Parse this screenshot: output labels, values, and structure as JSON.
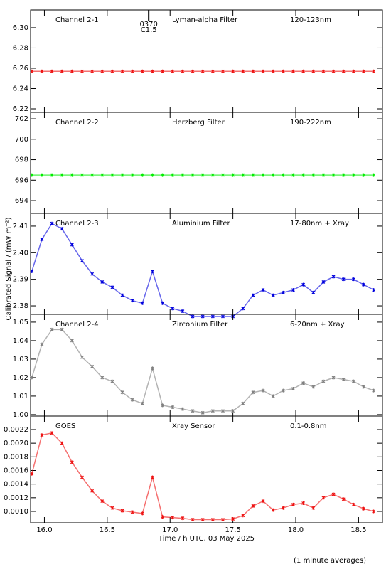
{
  "ylabel": "Calibrated Signal / (mW m⁻²)",
  "footnote": "(1 minute averages)",
  "chart_data": [
    {
      "type": "scatter",
      "labels": [
        "Channel 2-1",
        "Lyman-alpha Filter",
        "120-123nm"
      ],
      "annotation": {
        "x": 16.83,
        "texts": [
          "0370",
          "C1.5"
        ]
      },
      "xlim": [
        15.89,
        18.69
      ],
      "xticks": [
        {
          "value": 16,
          "label": "16.0"
        },
        16.5,
        {
          "value": 17,
          "label": "17.0"
        },
        17.5,
        {
          "value": 18,
          "label": "18.0"
        },
        18.5
      ],
      "ylim": [
        6.2165,
        6.3175
      ],
      "yticks": [
        6.22,
        {
          "value": 6.24,
          "label": "6.24"
        },
        {
          "value": 6.26,
          "label": "6.26"
        },
        {
          "value": 6.28,
          "label": "6.28"
        },
        {
          "value": 6.3,
          "label": "6.30"
        }
      ],
      "x": [
        15.9,
        15.98,
        16.06,
        16.14,
        16.22,
        16.3,
        16.38,
        16.46,
        16.54,
        16.62,
        16.7,
        16.78,
        16.86,
        16.94,
        17.02,
        17.1,
        17.18,
        17.26,
        17.34,
        17.42,
        17.5,
        17.58,
        17.66,
        17.74,
        17.82,
        17.9,
        17.98,
        18.06,
        18.14,
        18.22,
        18.3,
        18.38,
        18.46,
        18.54,
        18.62
      ],
      "series": [
        {
          "name": "Channel 2-1",
          "color": "#ee1111",
          "values": [
            6.257,
            6.257,
            6.257,
            6.257,
            6.257,
            6.257,
            6.257,
            6.257,
            6.257,
            6.257,
            6.257,
            6.257,
            6.257,
            6.257,
            6.257,
            6.257,
            6.257,
            6.257,
            6.257,
            6.257,
            6.257,
            6.257,
            6.257,
            6.257,
            6.257,
            6.257,
            6.257,
            6.257,
            6.257,
            6.257,
            6.257,
            6.257,
            6.257,
            6.257,
            6.257
          ]
        }
      ]
    },
    {
      "type": "scatter",
      "labels": [
        "Channel 2-2",
        "Herzberg Filter",
        "190-222nm"
      ],
      "xlim": [
        15.89,
        18.69
      ],
      "xticks": [
        {
          "value": 16,
          "label": "16.0"
        },
        16.5,
        {
          "value": 17,
          "label": "17.0"
        },
        17.5,
        {
          "value": 18,
          "label": "18.0"
        },
        18.5
      ],
      "ylim": [
        692.75,
        702.63
      ],
      "yticks": [
        694,
        696,
        698,
        700,
        702
      ],
      "x": [
        15.9,
        15.98,
        16.06,
        16.14,
        16.22,
        16.3,
        16.38,
        16.46,
        16.54,
        16.62,
        16.7,
        16.78,
        16.86,
        16.94,
        17.02,
        17.1,
        17.18,
        17.26,
        17.34,
        17.42,
        17.5,
        17.58,
        17.66,
        17.74,
        17.82,
        17.9,
        17.98,
        18.06,
        18.14,
        18.22,
        18.3,
        18.38,
        18.46,
        18.54,
        18.62
      ],
      "series": [
        {
          "name": "Channel 2-2",
          "color": "#00ee00",
          "values": [
            696.5,
            696.5,
            696.5,
            696.5,
            696.5,
            696.5,
            696.5,
            696.5,
            696.5,
            696.5,
            696.5,
            696.5,
            696.5,
            696.5,
            696.5,
            696.5,
            696.5,
            696.5,
            696.5,
            696.5,
            696.5,
            696.5,
            696.5,
            696.5,
            696.5,
            696.5,
            696.5,
            696.5,
            696.5,
            696.5,
            696.5,
            696.5,
            696.5,
            696.5,
            696.5
          ]
        }
      ]
    },
    {
      "type": "scatter",
      "labels": [
        "Channel 2-3",
        "Aluminium Filter",
        "17-80nm + Xray"
      ],
      "xlim": [
        15.89,
        18.69
      ],
      "xticks": [
        {
          "value": 16,
          "label": "16.0"
        },
        16.5,
        {
          "value": 17,
          "label": "17.0"
        },
        17.5,
        {
          "value": 18,
          "label": "18.0"
        },
        18.5
      ],
      "ylim": [
        2.3768,
        2.4148
      ],
      "yticks": [
        2.38,
        2.39,
        {
          "value": 2.4,
          "label": "2.40"
        },
        2.41
      ],
      "x": [
        15.9,
        15.98,
        16.06,
        16.14,
        16.22,
        16.3,
        16.38,
        16.46,
        16.54,
        16.62,
        16.7,
        16.78,
        16.86,
        16.94,
        17.02,
        17.1,
        17.18,
        17.26,
        17.34,
        17.42,
        17.5,
        17.58,
        17.66,
        17.74,
        17.82,
        17.9,
        17.98,
        18.06,
        18.14,
        18.22,
        18.3,
        18.38,
        18.46,
        18.54,
        18.62
      ],
      "series": [
        {
          "name": "Channel 2-3",
          "color": "#0000dd",
          "values": [
            2.393,
            2.405,
            2.411,
            2.409,
            2.403,
            2.397,
            2.392,
            2.389,
            2.387,
            2.384,
            2.382,
            2.381,
            2.393,
            2.381,
            2.379,
            2.378,
            2.376,
            2.376,
            2.376,
            2.376,
            2.376,
            2.379,
            2.384,
            2.386,
            2.384,
            2.385,
            2.386,
            2.388,
            2.385,
            2.389,
            2.391,
            2.39,
            2.39,
            2.388,
            2.386
          ]
        }
      ]
    },
    {
      "type": "scatter",
      "labels": [
        "Channel 2-4",
        "Zirconium Filter",
        "6-20nm + Xray"
      ],
      "xlim": [
        15.89,
        18.69
      ],
      "xticks": [
        {
          "value": 16,
          "label": "16.0"
        },
        16.5,
        {
          "value": 17,
          "label": "17.0"
        },
        17.5,
        {
          "value": 18,
          "label": "18.0"
        },
        18.5
      ],
      "ylim": [
        0.9992,
        1.0542
      ],
      "yticks": [
        {
          "value": 1,
          "label": "1.00"
        },
        1.01,
        1.02,
        1.03,
        1.04,
        1.05
      ],
      "x": [
        15.9,
        15.98,
        16.06,
        16.14,
        16.22,
        16.3,
        16.38,
        16.46,
        16.54,
        16.62,
        16.7,
        16.78,
        16.86,
        16.94,
        17.02,
        17.1,
        17.18,
        17.26,
        17.34,
        17.42,
        17.5,
        17.58,
        17.66,
        17.74,
        17.82,
        17.9,
        17.98,
        18.06,
        18.14,
        18.22,
        18.3,
        18.38,
        18.46,
        18.54,
        18.62
      ],
      "series": [
        {
          "name": "Channel 2-4",
          "color": "#808080",
          "values": [
            1.02,
            1.038,
            1.046,
            1.046,
            1.04,
            1.031,
            1.026,
            1.02,
            1.018,
            1.012,
            1.008,
            1.006,
            1.025,
            1.005,
            1.004,
            1.003,
            1.002,
            1.001,
            1.002,
            1.002,
            1.002,
            1.006,
            1.012,
            1.013,
            1.01,
            1.013,
            1.014,
            1.017,
            1.015,
            1.018,
            1.02,
            1.019,
            1.018,
            1.015,
            1.013
          ]
        }
      ]
    },
    {
      "type": "scatter",
      "labels": [
        "GOES",
        "Xray Sensor",
        "0.1-0.8nm"
      ],
      "xlabel": "Time / h UTC, 03 May 2025",
      "xlim": [
        15.89,
        18.69
      ],
      "xticks": [
        {
          "value": 16,
          "label": "16.0"
        },
        16.5,
        {
          "value": 17,
          "label": "17.0"
        },
        17.5,
        {
          "value": 18,
          "label": "18.0"
        },
        18.5
      ],
      "ylim": [
        0.000833,
        0.002398
      ],
      "yticks": [
        {
          "value": 0.001,
          "label": "0.0010"
        },
        {
          "value": 0.0012,
          "label": "0.0012"
        },
        {
          "value": 0.0014,
          "label": "0.0014"
        },
        {
          "value": 0.0016,
          "label": "0.0016"
        },
        {
          "value": 0.0018,
          "label": "0.0018"
        },
        {
          "value": 0.002,
          "label": "0.0020"
        },
        {
          "value": 0.0022,
          "label": "0.0022"
        }
      ],
      "x": [
        15.9,
        15.98,
        16.06,
        16.14,
        16.22,
        16.3,
        16.38,
        16.46,
        16.54,
        16.62,
        16.7,
        16.78,
        16.86,
        16.94,
        17.02,
        17.1,
        17.18,
        17.26,
        17.34,
        17.42,
        17.5,
        17.58,
        17.66,
        17.74,
        17.82,
        17.9,
        17.98,
        18.06,
        18.14,
        18.22,
        18.3,
        18.38,
        18.46,
        18.54,
        18.62
      ],
      "series": [
        {
          "name": "GOES",
          "color": "#ee1111",
          "values": [
            0.00155,
            0.00212,
            0.00215,
            0.002,
            0.00172,
            0.0015,
            0.0013,
            0.00115,
            0.00105,
            0.00101,
            0.00099,
            0.00097,
            0.0015,
            0.00092,
            0.00091,
            0.0009,
            0.00088,
            0.00088,
            0.00088,
            0.00088,
            0.00089,
            0.00094,
            0.00108,
            0.00115,
            0.00102,
            0.00105,
            0.0011,
            0.00112,
            0.00105,
            0.0012,
            0.00125,
            0.00118,
            0.0011,
            0.00104,
            0.001
          ]
        }
      ]
    }
  ]
}
